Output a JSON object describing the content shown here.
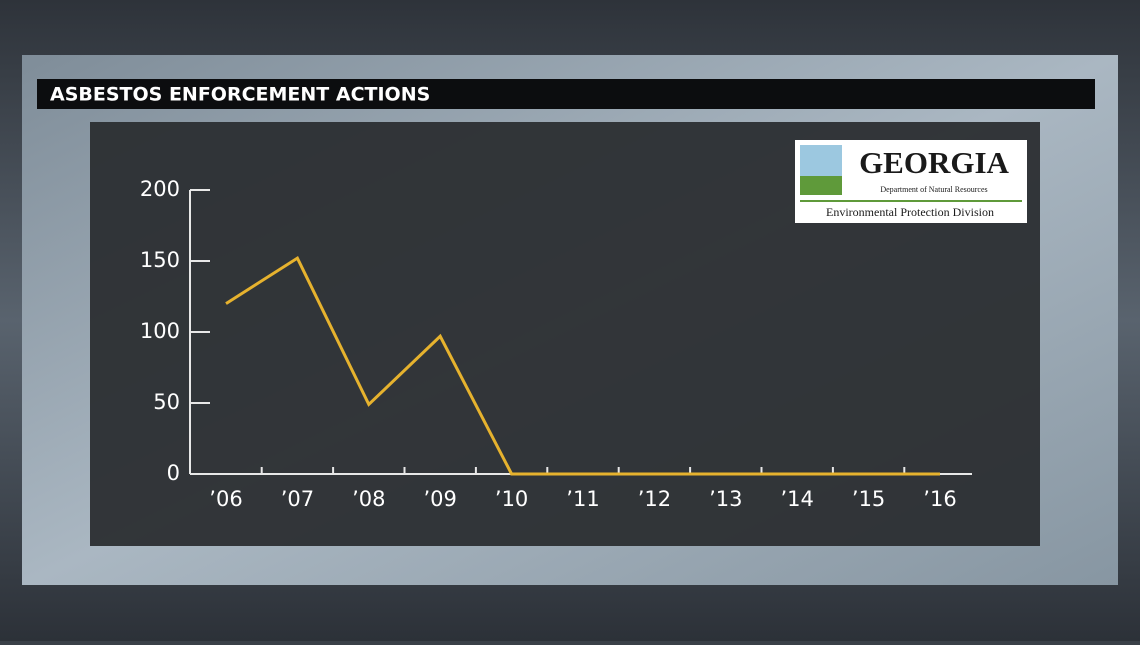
{
  "chart_data": {
    "type": "line",
    "title": "ASBESTOS ENFORCEMENT ACTIONS",
    "categories": [
      "’06",
      "’07",
      "’08",
      "’09",
      "’10",
      "’11",
      "’12",
      "’13",
      "’14",
      "’15",
      "’16"
    ],
    "values": [
      120,
      152,
      49,
      97,
      0,
      0,
      0,
      0,
      0,
      0,
      0
    ],
    "color": "#e6b22e",
    "ylim": [
      0,
      200
    ],
    "yticks": [
      0,
      50,
      100,
      150,
      200
    ]
  },
  "logo": {
    "name": "GEORGIA",
    "department": "Department of Natural Resources",
    "division": "Environmental Protection Division"
  }
}
